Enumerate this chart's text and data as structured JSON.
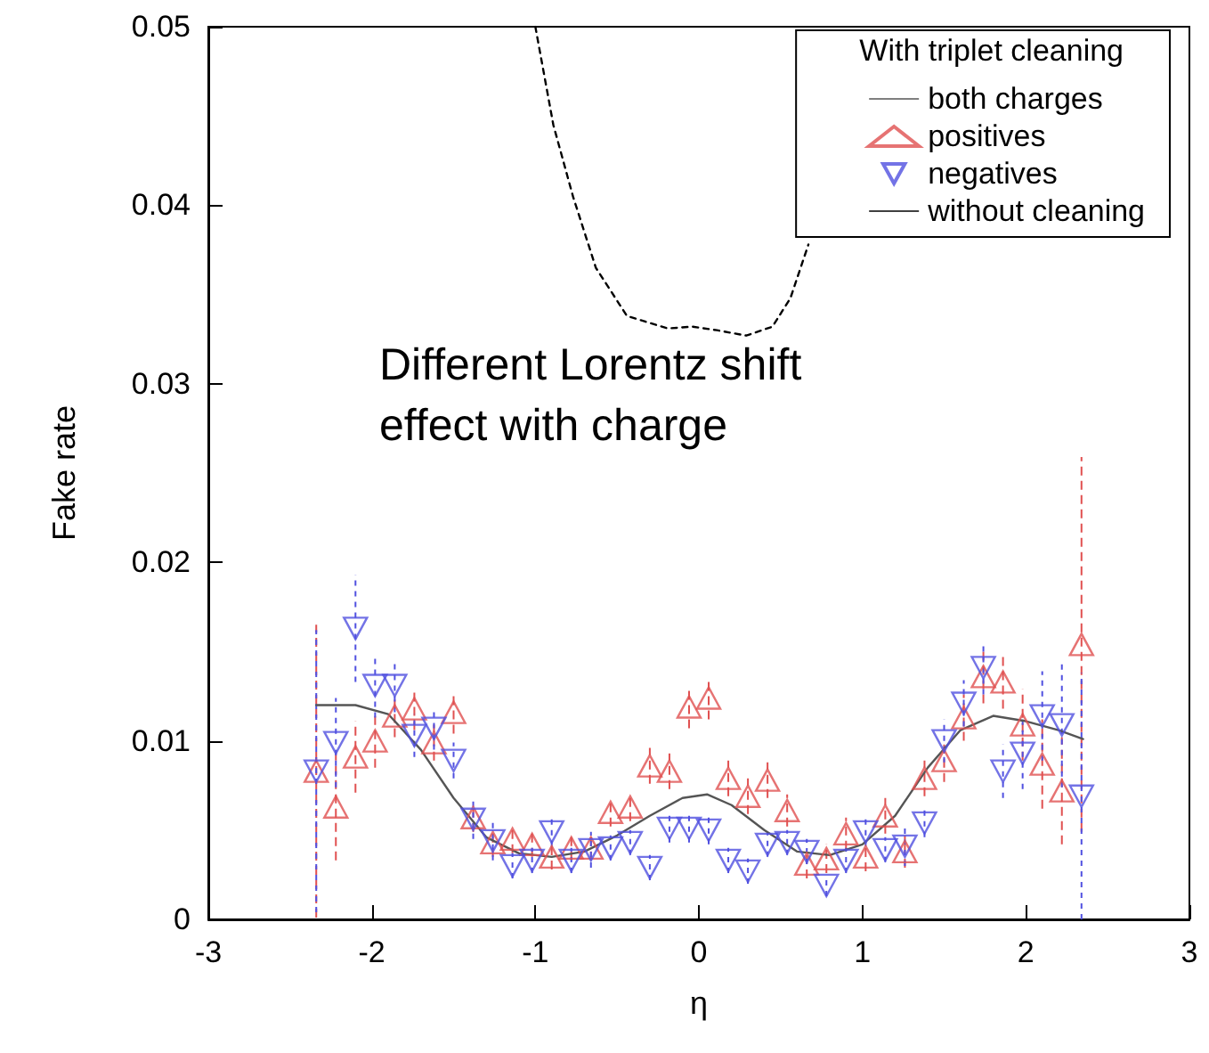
{
  "chart_data": {
    "type": "scatter",
    "xlabel": "η",
    "ylabel": "Fake rate",
    "legend_title": "With triplet cleaning",
    "annotations": [
      "Different Lorentz shift\neffect with charge"
    ],
    "xlim": [
      -3,
      3
    ],
    "xticks": [
      -3,
      -2,
      -1,
      0,
      1,
      2,
      3
    ],
    "ylim": [
      0,
      0.05
    ],
    "yticks": [
      0,
      0.01,
      0.02,
      0.03,
      0.04,
      0.05
    ],
    "grid": false,
    "legend": "top right",
    "series": [
      {
        "name": "both charges",
        "type": "line",
        "color": "#555555",
        "marker": "none",
        "line_style": "solid",
        "x": [
          -2.34,
          -2.1,
          -1.9,
          -1.7,
          -1.5,
          -1.3,
          -1.1,
          -0.9,
          -0.7,
          -0.5,
          -0.3,
          -0.1,
          0.05,
          0.2,
          0.4,
          0.6,
          0.8,
          1.0,
          1.2,
          1.4,
          1.6,
          1.8,
          2.0,
          2.2,
          2.35
        ],
        "values": [
          0.012,
          0.012,
          0.0115,
          0.0095,
          0.0068,
          0.0046,
          0.0037,
          0.0035,
          0.0038,
          0.0047,
          0.0058,
          0.0068,
          0.007,
          0.0064,
          0.005,
          0.0038,
          0.0036,
          0.0042,
          0.0058,
          0.0085,
          0.0106,
          0.0114,
          0.0111,
          0.0106,
          0.0101
        ]
      },
      {
        "name": "positives",
        "color": "#e05050",
        "marker": "triangle",
        "line_style": "dashed",
        "x": [
          -2.34,
          -2.22,
          -2.1,
          -1.98,
          -1.86,
          -1.74,
          -1.62,
          -1.5,
          -1.38,
          -1.26,
          -1.14,
          -1.02,
          -0.9,
          -0.78,
          -0.66,
          -0.54,
          -0.42,
          -0.3,
          -0.18,
          -0.06,
          0.06,
          0.18,
          0.3,
          0.42,
          0.54,
          0.66,
          0.78,
          0.9,
          1.02,
          1.14,
          1.26,
          1.38,
          1.5,
          1.62,
          1.74,
          1.86,
          1.98,
          2.1,
          2.22,
          2.34
        ],
        "values": [
          0.0083,
          0.0063,
          0.0091,
          0.01,
          0.0114,
          0.0118,
          0.0099,
          0.0116,
          0.0057,
          0.0043,
          0.0045,
          0.0042,
          0.0035,
          0.004,
          0.004,
          0.006,
          0.0063,
          0.0086,
          0.0083,
          0.0119,
          0.0124,
          0.0079,
          0.0069,
          0.0078,
          0.0061,
          0.0031,
          0.0034,
          0.0048,
          0.0035,
          0.0058,
          0.0038,
          0.0079,
          0.0089,
          0.0113,
          0.0136,
          0.0133,
          0.0109,
          0.0087,
          0.0072,
          0.0154
        ],
        "errors": [
          0.0082,
          0.003,
          0.002,
          0.0015,
          0.0012,
          0.0012,
          0.001,
          0.0012,
          0.0008,
          0.0008,
          0.0008,
          0.0007,
          0.0007,
          0.0007,
          0.0007,
          0.0008,
          0.0008,
          0.001,
          0.001,
          0.0012,
          0.0012,
          0.001,
          0.001,
          0.001,
          0.0009,
          0.0008,
          0.0008,
          0.0009,
          0.0008,
          0.001,
          0.0009,
          0.001,
          0.0012,
          0.0013,
          0.0015,
          0.0015,
          0.002,
          0.0025,
          0.003,
          0.0105
        ]
      },
      {
        "name": "negatives",
        "color": "#5050e0",
        "marker": "triangle-down",
        "line_style": "dotted",
        "x": [
          -2.34,
          -2.22,
          -2.1,
          -1.98,
          -1.86,
          -1.74,
          -1.62,
          -1.5,
          -1.38,
          -1.26,
          -1.14,
          -1.02,
          -0.9,
          -0.78,
          -0.66,
          -0.54,
          -0.42,
          -0.3,
          -0.18,
          -0.06,
          0.06,
          0.18,
          0.3,
          0.42,
          0.54,
          0.66,
          0.78,
          0.9,
          1.02,
          1.14,
          1.26,
          1.38,
          1.5,
          1.62,
          1.74,
          1.86,
          1.98,
          2.1,
          2.22,
          2.34
        ],
        "values": [
          0.0083,
          0.0099,
          0.0163,
          0.0131,
          0.0131,
          0.0103,
          0.0107,
          0.0089,
          0.0056,
          0.0044,
          0.003,
          0.0033,
          0.0049,
          0.0033,
          0.0039,
          0.004,
          0.0043,
          0.0029,
          0.0051,
          0.0051,
          0.005,
          0.0033,
          0.0027,
          0.0042,
          0.0043,
          0.0038,
          0.0019,
          0.0033,
          0.0049,
          0.0039,
          0.0041,
          0.0054,
          0.01,
          0.0121,
          0.0141,
          0.0083,
          0.0093,
          0.0114,
          0.0109,
          0.0069
        ],
        "errors": [
          0.0079,
          0.0025,
          0.003,
          0.0018,
          0.0015,
          0.0012,
          0.0012,
          0.001,
          0.0011,
          0.0011,
          0.0007,
          0.0007,
          0.0008,
          0.0007,
          0.001,
          0.0007,
          0.0007,
          0.0007,
          0.0008,
          0.0008,
          0.0008,
          0.0007,
          0.0007,
          0.0007,
          0.0007,
          0.0007,
          0.0006,
          0.0007,
          0.0008,
          0.0007,
          0.0011,
          0.0008,
          0.0012,
          0.0013,
          0.0015,
          0.0015,
          0.002,
          0.0025,
          0.0035,
          0.0069
        ]
      },
      {
        "name": "without cleaning",
        "type": "line",
        "color": "#000000",
        "marker": "none",
        "line_style": "dotted",
        "x": [
          -1.0,
          -0.89,
          -0.77,
          -0.63,
          -0.44,
          -0.19,
          -0.04,
          0.11,
          0.29,
          0.45,
          0.56,
          0.67
        ],
        "values": [
          0.05,
          0.0445,
          0.0405,
          0.0365,
          0.0338,
          0.0331,
          0.0332,
          0.033,
          0.0327,
          0.0332,
          0.0348,
          0.0378
        ]
      }
    ]
  }
}
